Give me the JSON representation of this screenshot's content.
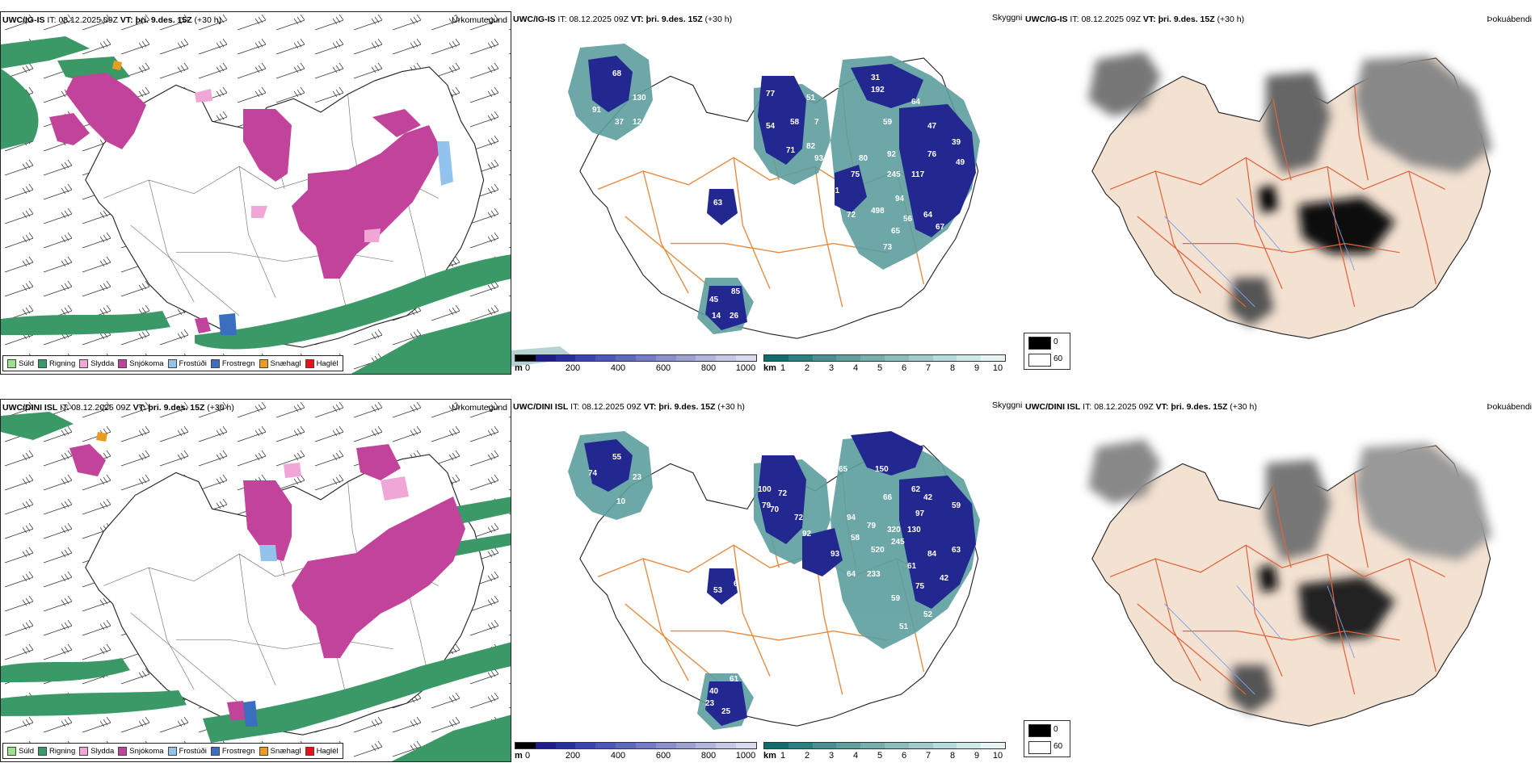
{
  "rows": [
    {
      "model": "UWC/IG-IS",
      "it_label": "IT:",
      "it_value": "08.12.2025 09Z",
      "vt_label": "VT:",
      "vt_value": "þri. 9.des. 15Z",
      "lead": "(+30 h)",
      "left_title": "Úrkomutegund",
      "mid_title": "Skyggni",
      "right_title": "Þokuábendi",
      "height_labels": [
        "91",
        "68",
        "130",
        "37",
        "12",
        "393",
        "77",
        "71",
        "54",
        "58",
        "82",
        "93",
        "51",
        "7",
        "32",
        "192",
        "31",
        "64",
        "59",
        "47",
        "80",
        "75",
        "92",
        "245",
        "117",
        "76",
        "39",
        "49",
        "81",
        "82",
        "72",
        "498",
        "94",
        "56",
        "64",
        "67",
        "65",
        "73",
        "49",
        "63",
        "45",
        "85",
        "26",
        "14"
      ]
    },
    {
      "model": "UWC/DINI ISL",
      "it_label": "IT:",
      "it_value": "08.12.2025 09Z",
      "vt_label": "VT:",
      "vt_value": "þri. 9.des. 15Z",
      "lead": "(+30 h)",
      "left_title": "Úrkomutegund",
      "mid_title": "Skyggni",
      "right_title": "Þokuábendi",
      "height_labels": [
        "74",
        "55",
        "23",
        "10",
        "100",
        "79",
        "72",
        "70",
        "72",
        "92",
        "65",
        "150",
        "62",
        "66",
        "42",
        "59",
        "94",
        "58",
        "79",
        "320",
        "130",
        "97",
        "93",
        "520",
        "245",
        "84",
        "101",
        "64",
        "233",
        "61",
        "75",
        "63",
        "42",
        "59",
        "53",
        "6",
        "51",
        "52",
        "61",
        "40",
        "25",
        "23"
      ]
    }
  ],
  "precip_legend": [
    {
      "label": "Súld",
      "color": "#9be38a"
    },
    {
      "label": "Rigning",
      "color": "#3a9966"
    },
    {
      "label": "Slydda",
      "color": "#f0a6d6"
    },
    {
      "label": "Snjókoma",
      "color": "#c2449a"
    },
    {
      "label": "Frostúði",
      "color": "#92c3ec"
    },
    {
      "label": "Frostregn",
      "color": "#3a6fc0"
    },
    {
      "label": "Snæhagl",
      "color": "#e99c22"
    },
    {
      "label": "Haglél",
      "color": "#e8141a"
    }
  ],
  "ceiling_scale": {
    "unit": "m",
    "ticks": [
      "0",
      "200",
      "400",
      "600",
      "800",
      "1000"
    ],
    "colors": [
      "#000000",
      "#1d1d8a",
      "#2a2fa0",
      "#3b43ad",
      "#4e57b5",
      "#6169bd",
      "#767cc4",
      "#8a90cc",
      "#9ea2d3",
      "#b3b6dc",
      "#c6c8e4",
      "#d8daed"
    ]
  },
  "visibility_scale": {
    "unit": "km",
    "ticks": [
      "1",
      "2",
      "3",
      "4",
      "5",
      "6",
      "7",
      "8",
      "9",
      "10"
    ],
    "colors": [
      "#0e6d6d",
      "#2d7e7e",
      "#4b8f8f",
      "#619e9e",
      "#77aeae",
      "#8cbdbd",
      "#a2cccc",
      "#b8dbdb",
      "#cfe8e8",
      "#e8f4f4"
    ]
  },
  "fog_legend": {
    "dark_label": "0",
    "light_label": "60",
    "dark_color": "#000000",
    "light_color": "#ffffff"
  },
  "colors": {
    "outline": "#222222",
    "road": "#e8873a",
    "snow": "#c2449a",
    "rain": "#3a9966",
    "fog_land": "#f3e1d1",
    "fog_road": "#e0643c",
    "river": "#7e9ef0",
    "teal": "#3f8f8f",
    "navy": "#232790"
  }
}
